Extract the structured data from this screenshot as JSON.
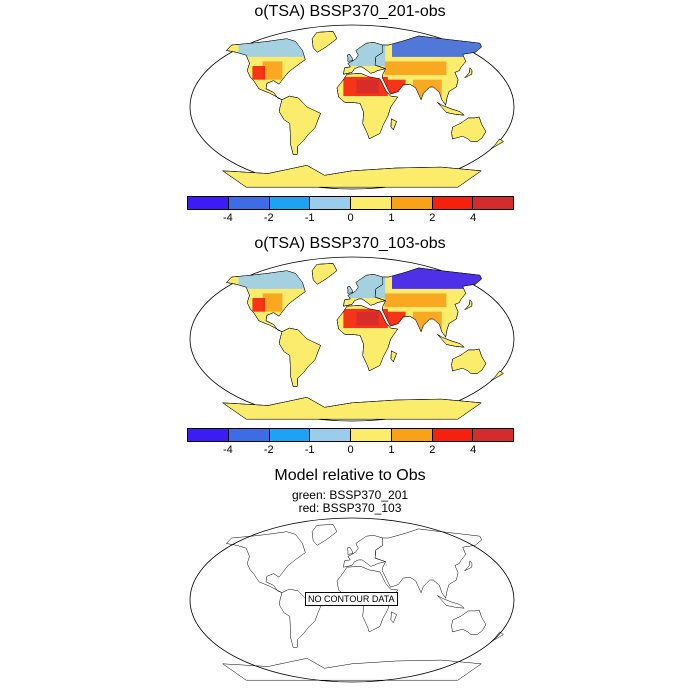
{
  "panel1": {
    "title": "o(TSA) BSSP370_201-obs"
  },
  "panel2": {
    "title": "o(TSA) BSSP370_103-obs"
  },
  "panel3": {
    "title": "Model relative to Obs",
    "line1": "green: BSSP370_201",
    "line2": "red: BSSP370_103",
    "no_data": "NO CONTOUR DATA"
  },
  "colorbar": {
    "colors": [
      "#3b1cf4",
      "#3e6ce4",
      "#1ea3f3",
      "#9acdec",
      "#fbec6c",
      "#f8a21a",
      "#f5200e",
      "#d42c2c"
    ],
    "labels": [
      "-4",
      "-2",
      "-1",
      "0",
      "1",
      "2",
      "4"
    ]
  }
}
